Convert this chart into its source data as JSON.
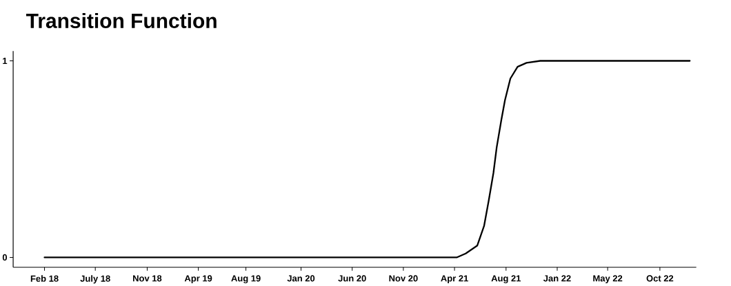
{
  "chart_data": {
    "type": "line",
    "title": "Transition Function",
    "x": [
      "2018-02-18",
      "2021-04-07",
      "2021-05-02",
      "2021-06-03",
      "2021-06-22",
      "2021-07-05",
      "2021-07-18",
      "2021-07-27",
      "2021-08-09",
      "2021-08-19",
      "2021-09-03",
      "2021-09-23",
      "2021-10-18",
      "2021-11-25",
      "2023-01-14"
    ],
    "values": [
      0,
      0,
      0.02,
      0.06,
      0.16,
      0.29,
      0.43,
      0.56,
      0.7,
      0.8,
      0.91,
      0.97,
      0.99,
      1,
      1
    ],
    "color": "#000000",
    "line_style": "solid",
    "xlim": [
      "2017-11-23",
      "2023-02-01"
    ],
    "ylim": [
      -0.05,
      1.05
    ],
    "xticks": [
      {
        "value": "2018-02-18",
        "label": "Feb 18"
      },
      {
        "value": "2018-07-09",
        "label": "July 18"
      },
      {
        "value": "2018-11-30",
        "label": "Nov 18"
      },
      {
        "value": "2019-04-21",
        "label": "Apr 19"
      },
      {
        "value": "2019-08-31",
        "label": "Aug 19"
      },
      {
        "value": "2020-01-31",
        "label": "Jan 20"
      },
      {
        "value": "2020-06-21",
        "label": "Jun 20"
      },
      {
        "value": "2020-11-10",
        "label": "Nov 20"
      },
      {
        "value": "2021-04-01",
        "label": "Apr 21"
      },
      {
        "value": "2021-08-22",
        "label": "Aug 21"
      },
      {
        "value": "2022-01-11",
        "label": "Jan 22"
      },
      {
        "value": "2022-05-31",
        "label": "May 22"
      },
      {
        "value": "2022-10-23",
        "label": "Oct 22"
      }
    ],
    "yticks": [
      0,
      1
    ]
  }
}
